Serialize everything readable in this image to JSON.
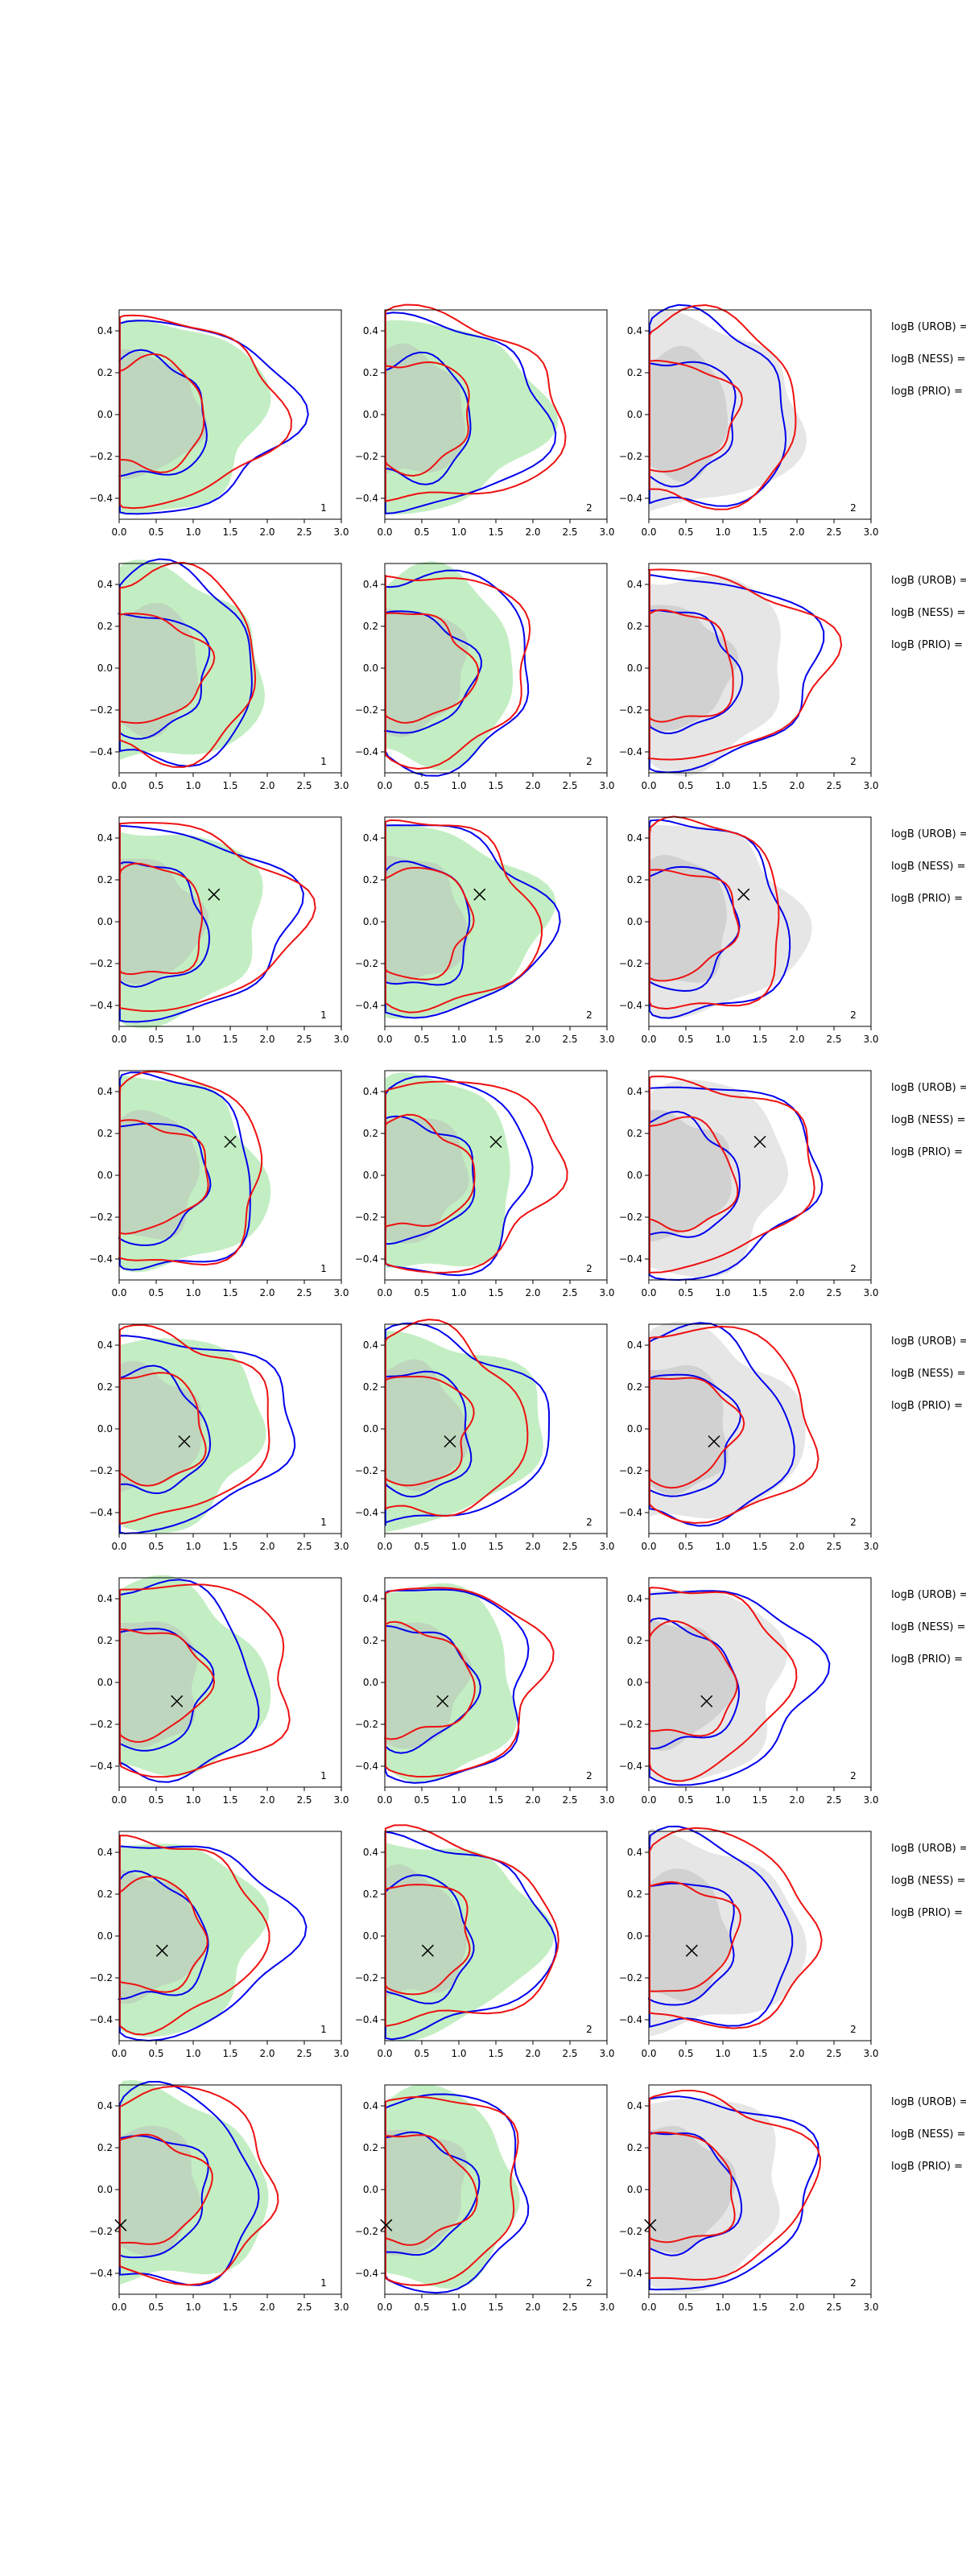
{
  "figure": {
    "background": "#ffffff"
  },
  "colors": {
    "blue": "#0000ee",
    "red": "#ee1111",
    "green_fill": "#7bd97b",
    "gray_fill": "#b8b8b8",
    "marker": "#000000"
  },
  "chart_data": {
    "type": "contour",
    "xlim": [
      0.0,
      3.0
    ],
    "ylim": [
      -0.5,
      0.5
    ],
    "xticks": [
      "0.0",
      "0.5",
      "1.0",
      "1.5",
      "2.0",
      "2.5",
      "3.0"
    ],
    "yticks": [
      "0.4",
      "0.2",
      "0.0",
      "−0.2",
      "−0.4"
    ],
    "grid": false,
    "legend": "none",
    "side_labels": [
      "logB (UROB) =",
      "logB (NESS) =",
      "logB (PRIO) ="
    ],
    "rows": [
      {
        "marker": null,
        "panel_numbers": [
          "1",
          "2",
          "2"
        ]
      },
      {
        "marker": null,
        "panel_numbers": [
          "1",
          "2",
          "2"
        ]
      },
      {
        "marker": [
          1.28,
          0.13
        ],
        "panel_numbers": [
          "1",
          "2",
          "2"
        ]
      },
      {
        "marker": [
          1.5,
          0.16
        ],
        "panel_numbers": [
          "1",
          "2",
          "2"
        ]
      },
      {
        "marker": [
          0.88,
          -0.06
        ],
        "panel_numbers": [
          "1",
          "2",
          "2"
        ]
      },
      {
        "marker": [
          0.78,
          -0.09
        ],
        "panel_numbers": [
          "1",
          "2",
          "2"
        ]
      },
      {
        "marker": [
          0.58,
          -0.07
        ],
        "panel_numbers": [
          "1",
          "2",
          "2"
        ]
      },
      {
        "marker": [
          0.02,
          -0.17
        ],
        "panel_numbers": [
          "1",
          "2",
          "2"
        ]
      }
    ]
  }
}
